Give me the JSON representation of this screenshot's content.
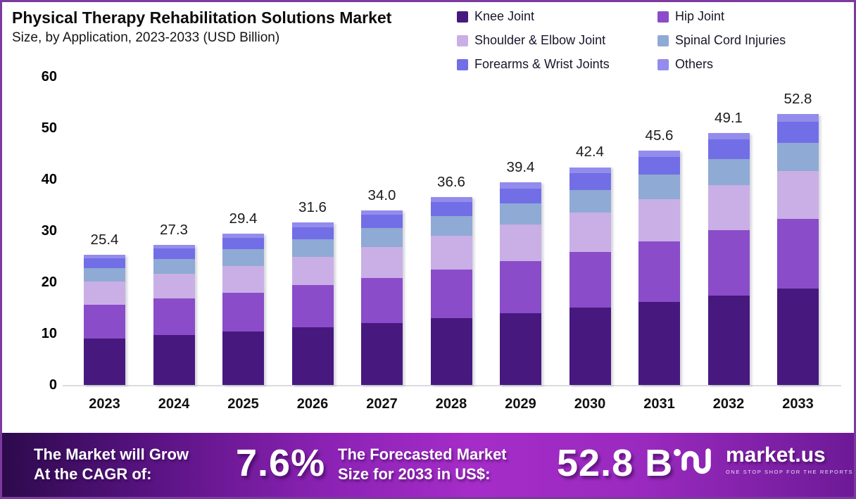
{
  "chart_data": {
    "type": "bar",
    "stacked": true,
    "title": "Physical Therapy Rehabilitation Solutions Market",
    "subtitle": "Size, by Application, 2023-2033 (USD Billion)",
    "grid": false,
    "legend_position": "top-right",
    "ylim": [
      0,
      60
    ],
    "yticks": [
      0,
      10,
      20,
      30,
      40,
      50,
      60
    ],
    "categories": [
      2023,
      2024,
      2025,
      2026,
      2027,
      2028,
      2029,
      2030,
      2031,
      2032,
      2033
    ],
    "series": [
      {
        "name": "Knee Joint",
        "color": "#47197E",
        "values": [
          9.0,
          9.7,
          10.4,
          11.2,
          12.0,
          13.0,
          14.0,
          15.1,
          16.2,
          17.4,
          18.7
        ]
      },
      {
        "name": "Hip Joint",
        "color": "#8A4CC8",
        "values": [
          6.6,
          7.1,
          7.6,
          8.2,
          8.8,
          9.5,
          10.1,
          10.8,
          11.8,
          12.7,
          13.6
        ]
      },
      {
        "name": "Shoulder & Elbow Joint",
        "color": "#C9AFE6",
        "values": [
          4.5,
          4.8,
          5.2,
          5.6,
          6.1,
          6.5,
          7.2,
          7.7,
          8.2,
          8.8,
          9.4
        ]
      },
      {
        "name": "Spinal Cord Injuries",
        "color": "#8FAAD4",
        "values": [
          2.7,
          2.9,
          3.2,
          3.4,
          3.7,
          3.9,
          4.0,
          4.3,
          4.7,
          5.1,
          5.4
        ]
      },
      {
        "name": "Forearms & Wrist Joints",
        "color": "#726EE6",
        "values": [
          1.9,
          2.1,
          2.2,
          2.3,
          2.5,
          2.7,
          2.9,
          3.3,
          3.5,
          3.8,
          4.1
        ]
      },
      {
        "name": "Others",
        "color": "#938CEC",
        "values": [
          0.7,
          0.7,
          0.8,
          0.9,
          0.9,
          1.0,
          1.2,
          1.2,
          1.2,
          1.3,
          1.6
        ]
      }
    ],
    "totals": [
      25.4,
      27.3,
      29.4,
      31.6,
      34.0,
      36.6,
      39.4,
      42.4,
      45.6,
      49.1,
      52.8
    ]
  },
  "banner": {
    "cagr_label_line1": "The Market will Grow",
    "cagr_label_line2": "At the CAGR of:",
    "cagr_value": "7.6%",
    "forecast_label_line1": "The Forecasted Market",
    "forecast_label_line2": "Size for 2033 in US$:",
    "forecast_value": "52.8 B",
    "brand_name": "market.us",
    "brand_tagline": "ONE STOP SHOP FOR THE REPORTS"
  },
  "colors": {
    "page_border": "#7c3aa0",
    "banner_gradient_start": "#2d0a4c",
    "banner_gradient_mid": "#a52cc8",
    "banner_gradient_end": "#6d1a97"
  }
}
